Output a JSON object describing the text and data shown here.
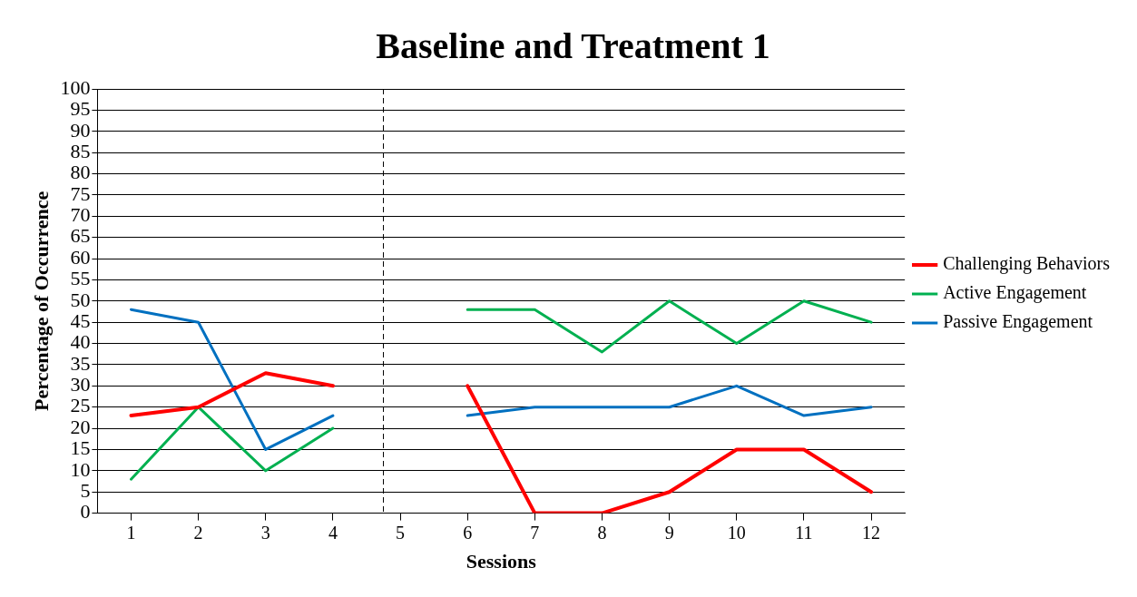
{
  "chart_data": {
    "type": "line",
    "title": "Baseline and Treatment 1",
    "xlabel": "Sessions",
    "ylabel": "Percentage of Occurrence",
    "x": [
      1,
      2,
      3,
      4,
      5,
      6,
      7,
      8,
      9,
      10,
      11,
      12
    ],
    "series": [
      {
        "name": "Challenging Behaviors",
        "color": "#ff0000",
        "values": [
          23,
          25,
          33,
          30,
          null,
          30,
          0,
          0,
          5,
          15,
          15,
          5
        ]
      },
      {
        "name": "Active Engagement",
        "color": "#00b050",
        "values": [
          8,
          25,
          10,
          20,
          null,
          48,
          48,
          38,
          50,
          40,
          50,
          45
        ]
      },
      {
        "name": "Passive Engagement",
        "color": "#0070c0",
        "values": [
          48,
          45,
          15,
          23,
          null,
          23,
          25,
          25,
          25,
          30,
          23,
          25
        ]
      }
    ],
    "xlim": [
      0.5,
      12.5
    ],
    "xticks": [
      1,
      2,
      3,
      4,
      5,
      6,
      7,
      8,
      9,
      10,
      11,
      12
    ],
    "ylim": [
      0,
      100
    ],
    "yticks": [
      0,
      5,
      10,
      15,
      20,
      25,
      30,
      35,
      40,
      45,
      50,
      55,
      60,
      65,
      70,
      75,
      80,
      85,
      90,
      95,
      100
    ],
    "ref_lines": [
      {
        "axis": "x",
        "value": 4.75,
        "color": "#000000",
        "line_style": "dashed"
      }
    ],
    "grid": "y",
    "legend": "right",
    "marker": "none",
    "line_style": "solid"
  }
}
